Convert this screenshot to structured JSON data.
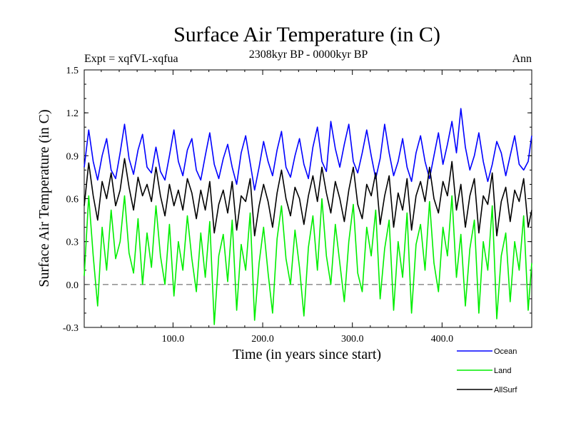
{
  "chart_data": {
    "type": "line",
    "title": "Surface Air Temperature (in C)",
    "subtitle": "2308kyr BP - 0000kyr BP",
    "experiment_label": "Expt = xqfVL-xqfua",
    "season_label": "Ann",
    "xlabel": "Time (in years since start)",
    "ylabel": "Surface Air Temperature (in C)",
    "xlim": [
      1,
      500
    ],
    "ylim": [
      -0.3,
      1.5
    ],
    "x_ticks": [
      100,
      200,
      300,
      400
    ],
    "x_tick_labels": [
      "100.0",
      "200.0",
      "300.0",
      "400.0"
    ],
    "y_ticks": [
      -0.3,
      0.0,
      0.3,
      0.6,
      0.9,
      1.2,
      1.5
    ],
    "y_tick_labels": [
      "-0.3",
      "0.0",
      "0.3",
      "0.6",
      "0.9",
      "1.2",
      "1.5"
    ],
    "zero_line": {
      "y": 0.0,
      "style": "dashed"
    },
    "legend_position": "bottom-right",
    "series": [
      {
        "name": "Ocean",
        "color": "#0000ff",
        "x": [
          1,
          6,
          11,
          16,
          21,
          26,
          31,
          36,
          41,
          46,
          51,
          56,
          61,
          66,
          71,
          76,
          81,
          86,
          91,
          96,
          101,
          106,
          111,
          116,
          121,
          126,
          131,
          136,
          141,
          146,
          151,
          156,
          161,
          166,
          171,
          176,
          181,
          186,
          191,
          196,
          201,
          206,
          211,
          216,
          221,
          226,
          231,
          236,
          241,
          246,
          251,
          256,
          261,
          266,
          271,
          276,
          281,
          286,
          291,
          296,
          301,
          306,
          311,
          316,
          321,
          326,
          331,
          336,
          341,
          346,
          351,
          356,
          361,
          366,
          371,
          376,
          381,
          386,
          391,
          396,
          401,
          406,
          411,
          416,
          421,
          426,
          431,
          436,
          441,
          446,
          451,
          456,
          461,
          466,
          471,
          476,
          481,
          486,
          491,
          496,
          500
        ],
        "values": [
          0.82,
          1.08,
          0.86,
          0.73,
          0.9,
          1.02,
          0.8,
          0.74,
          0.92,
          1.12,
          0.88,
          0.77,
          0.94,
          1.05,
          0.82,
          0.78,
          0.96,
          0.79,
          0.73,
          0.9,
          1.08,
          0.86,
          0.76,
          0.94,
          1.02,
          0.8,
          0.73,
          0.9,
          1.06,
          0.84,
          0.74,
          0.88,
          0.98,
          0.82,
          0.7,
          0.92,
          1.04,
          0.85,
          0.66,
          0.82,
          1.0,
          0.86,
          0.76,
          0.94,
          1.07,
          0.82,
          0.75,
          0.9,
          1.02,
          0.84,
          0.74,
          0.96,
          1.1,
          0.86,
          0.79,
          1.14,
          0.95,
          0.82,
          0.98,
          1.12,
          0.86,
          0.78,
          0.92,
          1.08,
          0.9,
          0.74,
          0.88,
          1.12,
          0.92,
          0.76,
          0.86,
          1.02,
          0.82,
          0.72,
          0.92,
          1.04,
          0.86,
          0.74,
          0.9,
          1.06,
          0.84,
          0.98,
          1.14,
          0.92,
          1.23,
          0.96,
          0.8,
          0.9,
          1.06,
          0.86,
          0.72,
          0.84,
          1.0,
          0.92,
          0.76,
          0.9,
          1.04,
          0.84,
          0.8,
          0.86,
          1.04
        ]
      },
      {
        "name": "Land",
        "color": "#00ee00",
        "x": [
          1,
          6,
          11,
          16,
          21,
          26,
          31,
          36,
          41,
          46,
          51,
          56,
          61,
          66,
          71,
          76,
          81,
          86,
          91,
          96,
          101,
          106,
          111,
          116,
          121,
          126,
          131,
          136,
          141,
          146,
          151,
          156,
          161,
          166,
          171,
          176,
          181,
          186,
          191,
          196,
          201,
          206,
          211,
          216,
          221,
          226,
          231,
          236,
          241,
          246,
          251,
          256,
          261,
          266,
          271,
          276,
          281,
          286,
          291,
          296,
          301,
          306,
          311,
          316,
          321,
          326,
          331,
          336,
          341,
          346,
          351,
          356,
          361,
          366,
          371,
          376,
          381,
          386,
          391,
          396,
          401,
          406,
          411,
          416,
          421,
          426,
          431,
          436,
          441,
          446,
          451,
          456,
          461,
          466,
          471,
          476,
          481,
          486,
          491,
          496,
          500
        ],
        "values": [
          0.06,
          0.62,
          0.2,
          -0.15,
          0.4,
          0.1,
          0.52,
          0.18,
          0.3,
          0.62,
          0.22,
          0.08,
          0.46,
          0.0,
          0.36,
          0.12,
          0.55,
          0.2,
          0.0,
          0.42,
          -0.08,
          0.3,
          0.1,
          0.48,
          0.18,
          -0.05,
          0.36,
          0.05,
          0.44,
          -0.28,
          0.2,
          0.35,
          0.02,
          0.45,
          -0.18,
          0.28,
          0.1,
          0.5,
          -0.25,
          0.15,
          0.4,
          0.08,
          -0.2,
          0.32,
          0.55,
          0.18,
          0.0,
          0.38,
          0.12,
          -0.22,
          0.26,
          0.48,
          0.1,
          0.6,
          0.2,
          0.0,
          0.42,
          0.15,
          -0.12,
          0.3,
          0.56,
          0.08,
          -0.05,
          0.4,
          0.2,
          0.52,
          -0.1,
          0.25,
          0.45,
          -0.18,
          0.3,
          0.05,
          0.5,
          -0.2,
          0.28,
          0.42,
          0.1,
          0.58,
          0.15,
          -0.05,
          0.4,
          0.2,
          0.62,
          0.05,
          0.35,
          -0.15,
          0.25,
          0.45,
          -0.2,
          0.3,
          0.1,
          0.55,
          -0.24,
          0.2,
          0.36,
          -0.12,
          0.3,
          0.1,
          0.48,
          -0.18,
          0.15
        ]
      },
      {
        "name": "AllSurf",
        "color": "#000000",
        "x": [
          1,
          6,
          11,
          16,
          21,
          26,
          31,
          36,
          41,
          46,
          51,
          56,
          61,
          66,
          71,
          76,
          81,
          86,
          91,
          96,
          101,
          106,
          111,
          116,
          121,
          126,
          131,
          136,
          141,
          146,
          151,
          156,
          161,
          166,
          171,
          176,
          181,
          186,
          191,
          196,
          201,
          206,
          211,
          216,
          221,
          226,
          231,
          236,
          241,
          246,
          251,
          256,
          261,
          266,
          271,
          276,
          281,
          286,
          291,
          296,
          301,
          306,
          311,
          316,
          321,
          326,
          331,
          336,
          341,
          346,
          351,
          356,
          361,
          366,
          371,
          376,
          381,
          386,
          391,
          396,
          401,
          406,
          411,
          416,
          421,
          426,
          431,
          436,
          441,
          446,
          451,
          456,
          461,
          466,
          471,
          476,
          481,
          486,
          491,
          496,
          500
        ],
        "values": [
          0.55,
          0.85,
          0.62,
          0.45,
          0.72,
          0.6,
          0.78,
          0.55,
          0.66,
          0.88,
          0.68,
          0.52,
          0.75,
          0.62,
          0.7,
          0.58,
          0.82,
          0.62,
          0.48,
          0.7,
          0.55,
          0.66,
          0.52,
          0.74,
          0.64,
          0.46,
          0.66,
          0.52,
          0.72,
          0.36,
          0.56,
          0.66,
          0.5,
          0.72,
          0.38,
          0.62,
          0.58,
          0.74,
          0.34,
          0.55,
          0.7,
          0.58,
          0.4,
          0.64,
          0.8,
          0.6,
          0.48,
          0.68,
          0.6,
          0.42,
          0.62,
          0.76,
          0.58,
          0.82,
          0.64,
          0.5,
          0.72,
          0.6,
          0.44,
          0.66,
          0.82,
          0.56,
          0.46,
          0.7,
          0.62,
          0.78,
          0.42,
          0.62,
          0.76,
          0.4,
          0.64,
          0.52,
          0.74,
          0.38,
          0.62,
          0.72,
          0.58,
          0.82,
          0.6,
          0.5,
          0.72,
          0.62,
          0.86,
          0.52,
          0.7,
          0.4,
          0.62,
          0.74,
          0.36,
          0.62,
          0.56,
          0.78,
          0.34,
          0.58,
          0.68,
          0.44,
          0.66,
          0.58,
          0.74,
          0.4,
          0.52
        ]
      }
    ]
  }
}
